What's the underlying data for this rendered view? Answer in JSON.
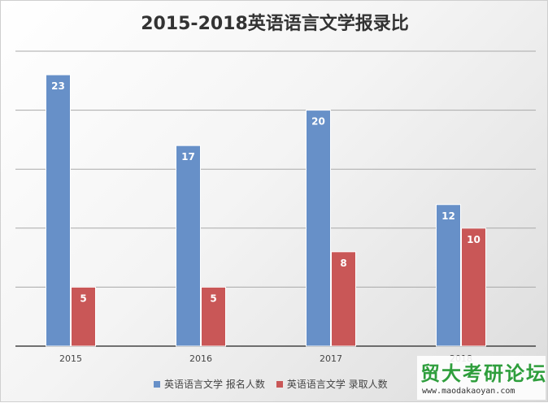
{
  "chart_data": {
    "type": "bar",
    "title": "2015-2018英语语言文学报录比",
    "categories": [
      "2015",
      "2016",
      "2017",
      "2018"
    ],
    "series": [
      {
        "name": "英语语言文学 报名人数",
        "values": [
          23,
          17,
          20,
          12
        ],
        "color": "#6790c8"
      },
      {
        "name": "英语语言文学 录取人数",
        "values": [
          5,
          5,
          8,
          10
        ],
        "color": "#c95757"
      }
    ],
    "ylim": [
      0,
      25
    ],
    "grid": true,
    "legend": "bottom",
    "data_labels": true
  },
  "watermark": {
    "title": "贸大考研论坛",
    "url": "www.maodakaoyan.com"
  }
}
